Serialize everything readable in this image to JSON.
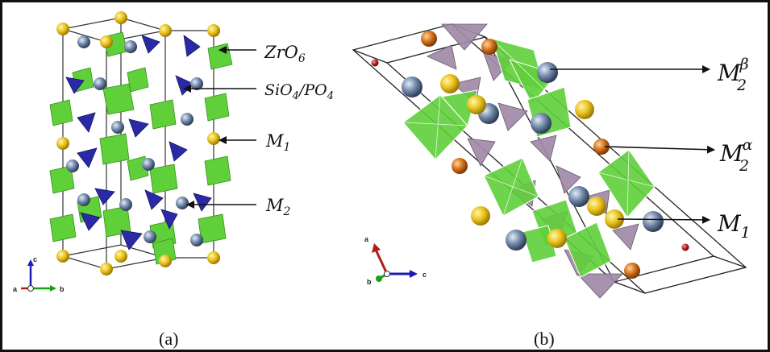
{
  "panel_a": {
    "caption": "(a)",
    "labels": {
      "zro6": "ZrO",
      "zro6_sub": "6",
      "sio4_1": "SiO",
      "sio4_sub": "4",
      "sio4_slash": "/PO",
      "po4_sub": "4",
      "m1": "M",
      "m1_sub": "1",
      "m2": "M",
      "m2_sub": "2"
    },
    "axes": {
      "c": "c",
      "a": "a",
      "b": "b"
    }
  },
  "panel_b": {
    "caption": "(b)",
    "labels": {
      "m2b": "M",
      "m2b_sub": "2",
      "m2b_sup": "β",
      "m2a": "M",
      "m2a_sub": "2",
      "m2a_sup": "α",
      "m1": "M",
      "m1_sub": "1"
    },
    "axes": {
      "a": "a",
      "b": "b",
      "c": "c"
    }
  },
  "colors": {
    "octahedron": "#5fcf3a",
    "tetra_blue": "#2a2aa8",
    "tetra_purple": "#a18aa8",
    "atom_yellow": "#e8c21a",
    "atom_steel": "#6f86a8",
    "atom_orange": "#d46f1a",
    "atom_red": "#b01b1b"
  }
}
